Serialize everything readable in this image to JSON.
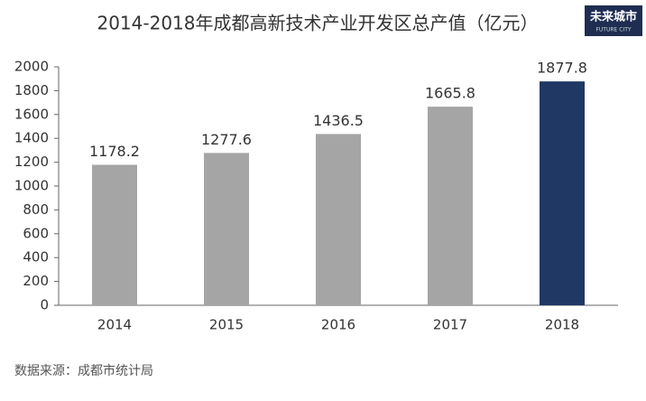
{
  "chart_data": {
    "type": "bar",
    "title": "2014-2018年成都高新技术产业开发区总产值（亿元）",
    "categories": [
      "2014",
      "2015",
      "2016",
      "2017",
      "2018"
    ],
    "values": [
      1178.2,
      1277.6,
      1436.5,
      1665.8,
      1877.8
    ],
    "colors": [
      "#a5a5a5",
      "#a5a5a5",
      "#a5a5a5",
      "#a5a5a5",
      "#203864"
    ],
    "ylim": [
      0,
      2000
    ],
    "yticks": [
      0,
      200,
      400,
      600,
      800,
      1000,
      1200,
      1400,
      1600,
      1800,
      2000
    ],
    "grid": false,
    "source": "数据来源：成都市统计局"
  },
  "logo": {
    "text": "未来城市",
    "subtext": "FUTURE CITY"
  }
}
